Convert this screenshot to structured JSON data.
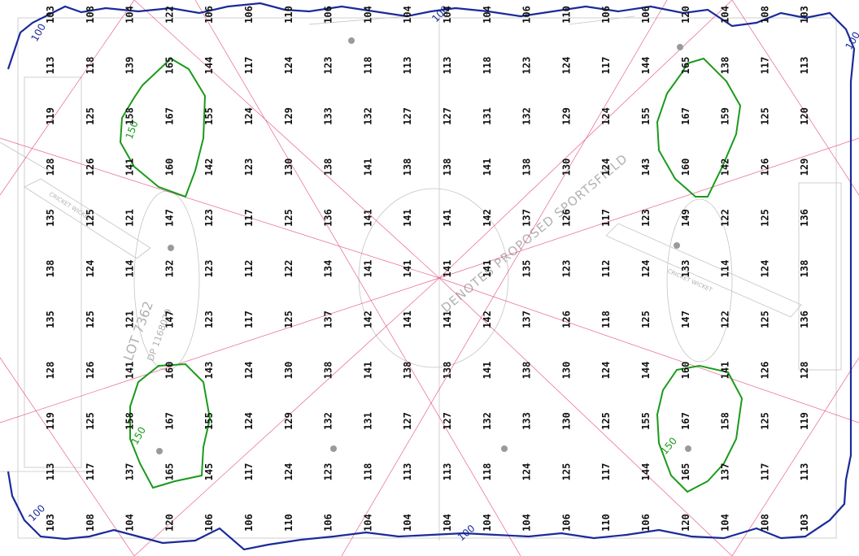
{
  "plan": {
    "lot_label": "LOT 7362",
    "dp_label": "DP 1168079",
    "sportsfield_label": "DENOTES PROPOSED SPORTSFIELD",
    "cricket_wicket_label": "CRICKET WICKET",
    "contour_labels": {
      "blue": "100",
      "green": "150"
    },
    "lux_grid": [
      [
        103,
        108,
        104,
        122,
        106,
        106,
        110,
        106,
        104,
        104,
        104,
        104,
        106,
        110,
        106,
        106,
        120,
        104,
        108,
        103
      ],
      [
        113,
        118,
        139,
        165,
        144,
        117,
        124,
        123,
        118,
        113,
        113,
        118,
        123,
        124,
        117,
        144,
        165,
        138,
        117,
        113
      ],
      [
        119,
        125,
        158,
        167,
        155,
        124,
        129,
        133,
        132,
        127,
        127,
        131,
        132,
        129,
        124,
        155,
        167,
        159,
        125,
        120
      ],
      [
        128,
        126,
        141,
        160,
        142,
        123,
        130,
        138,
        141,
        138,
        138,
        141,
        138,
        130,
        124,
        143,
        160,
        142,
        126,
        129
      ],
      [
        135,
        125,
        121,
        147,
        123,
        117,
        125,
        136,
        141,
        141,
        141,
        142,
        137,
        126,
        117,
        123,
        149,
        122,
        125,
        136
      ],
      [
        138,
        124,
        114,
        132,
        123,
        112,
        122,
        134,
        141,
        141,
        141,
        141,
        135,
        123,
        112,
        124,
        133,
        114,
        124,
        138
      ],
      [
        135,
        125,
        121,
        147,
        123,
        117,
        125,
        137,
        142,
        141,
        141,
        142,
        137,
        126,
        118,
        125,
        147,
        122,
        125,
        136
      ],
      [
        128,
        126,
        141,
        160,
        143,
        124,
        130,
        138,
        141,
        138,
        138,
        141,
        138,
        130,
        124,
        144,
        160,
        141,
        126,
        128
      ],
      [
        119,
        125,
        158,
        167,
        155,
        124,
        129,
        132,
        131,
        127,
        127,
        132,
        133,
        130,
        125,
        155,
        167,
        158,
        125,
        119
      ],
      [
        113,
        117,
        137,
        165,
        145,
        117,
        124,
        123,
        118,
        113,
        113,
        118,
        124,
        125,
        117,
        144,
        165,
        137,
        117,
        113
      ],
      [
        103,
        108,
        104,
        120,
        106,
        106,
        110,
        106,
        104,
        104,
        104,
        104,
        104,
        106,
        110,
        106,
        120,
        104,
        108,
        103
      ]
    ]
  },
  "colors": {
    "contour_100": "#1a2a9a",
    "contour_150": "#1a9a1a",
    "pole_lines": "#e0306a",
    "background_lines": "#b0b0b0",
    "values": "#111111"
  }
}
